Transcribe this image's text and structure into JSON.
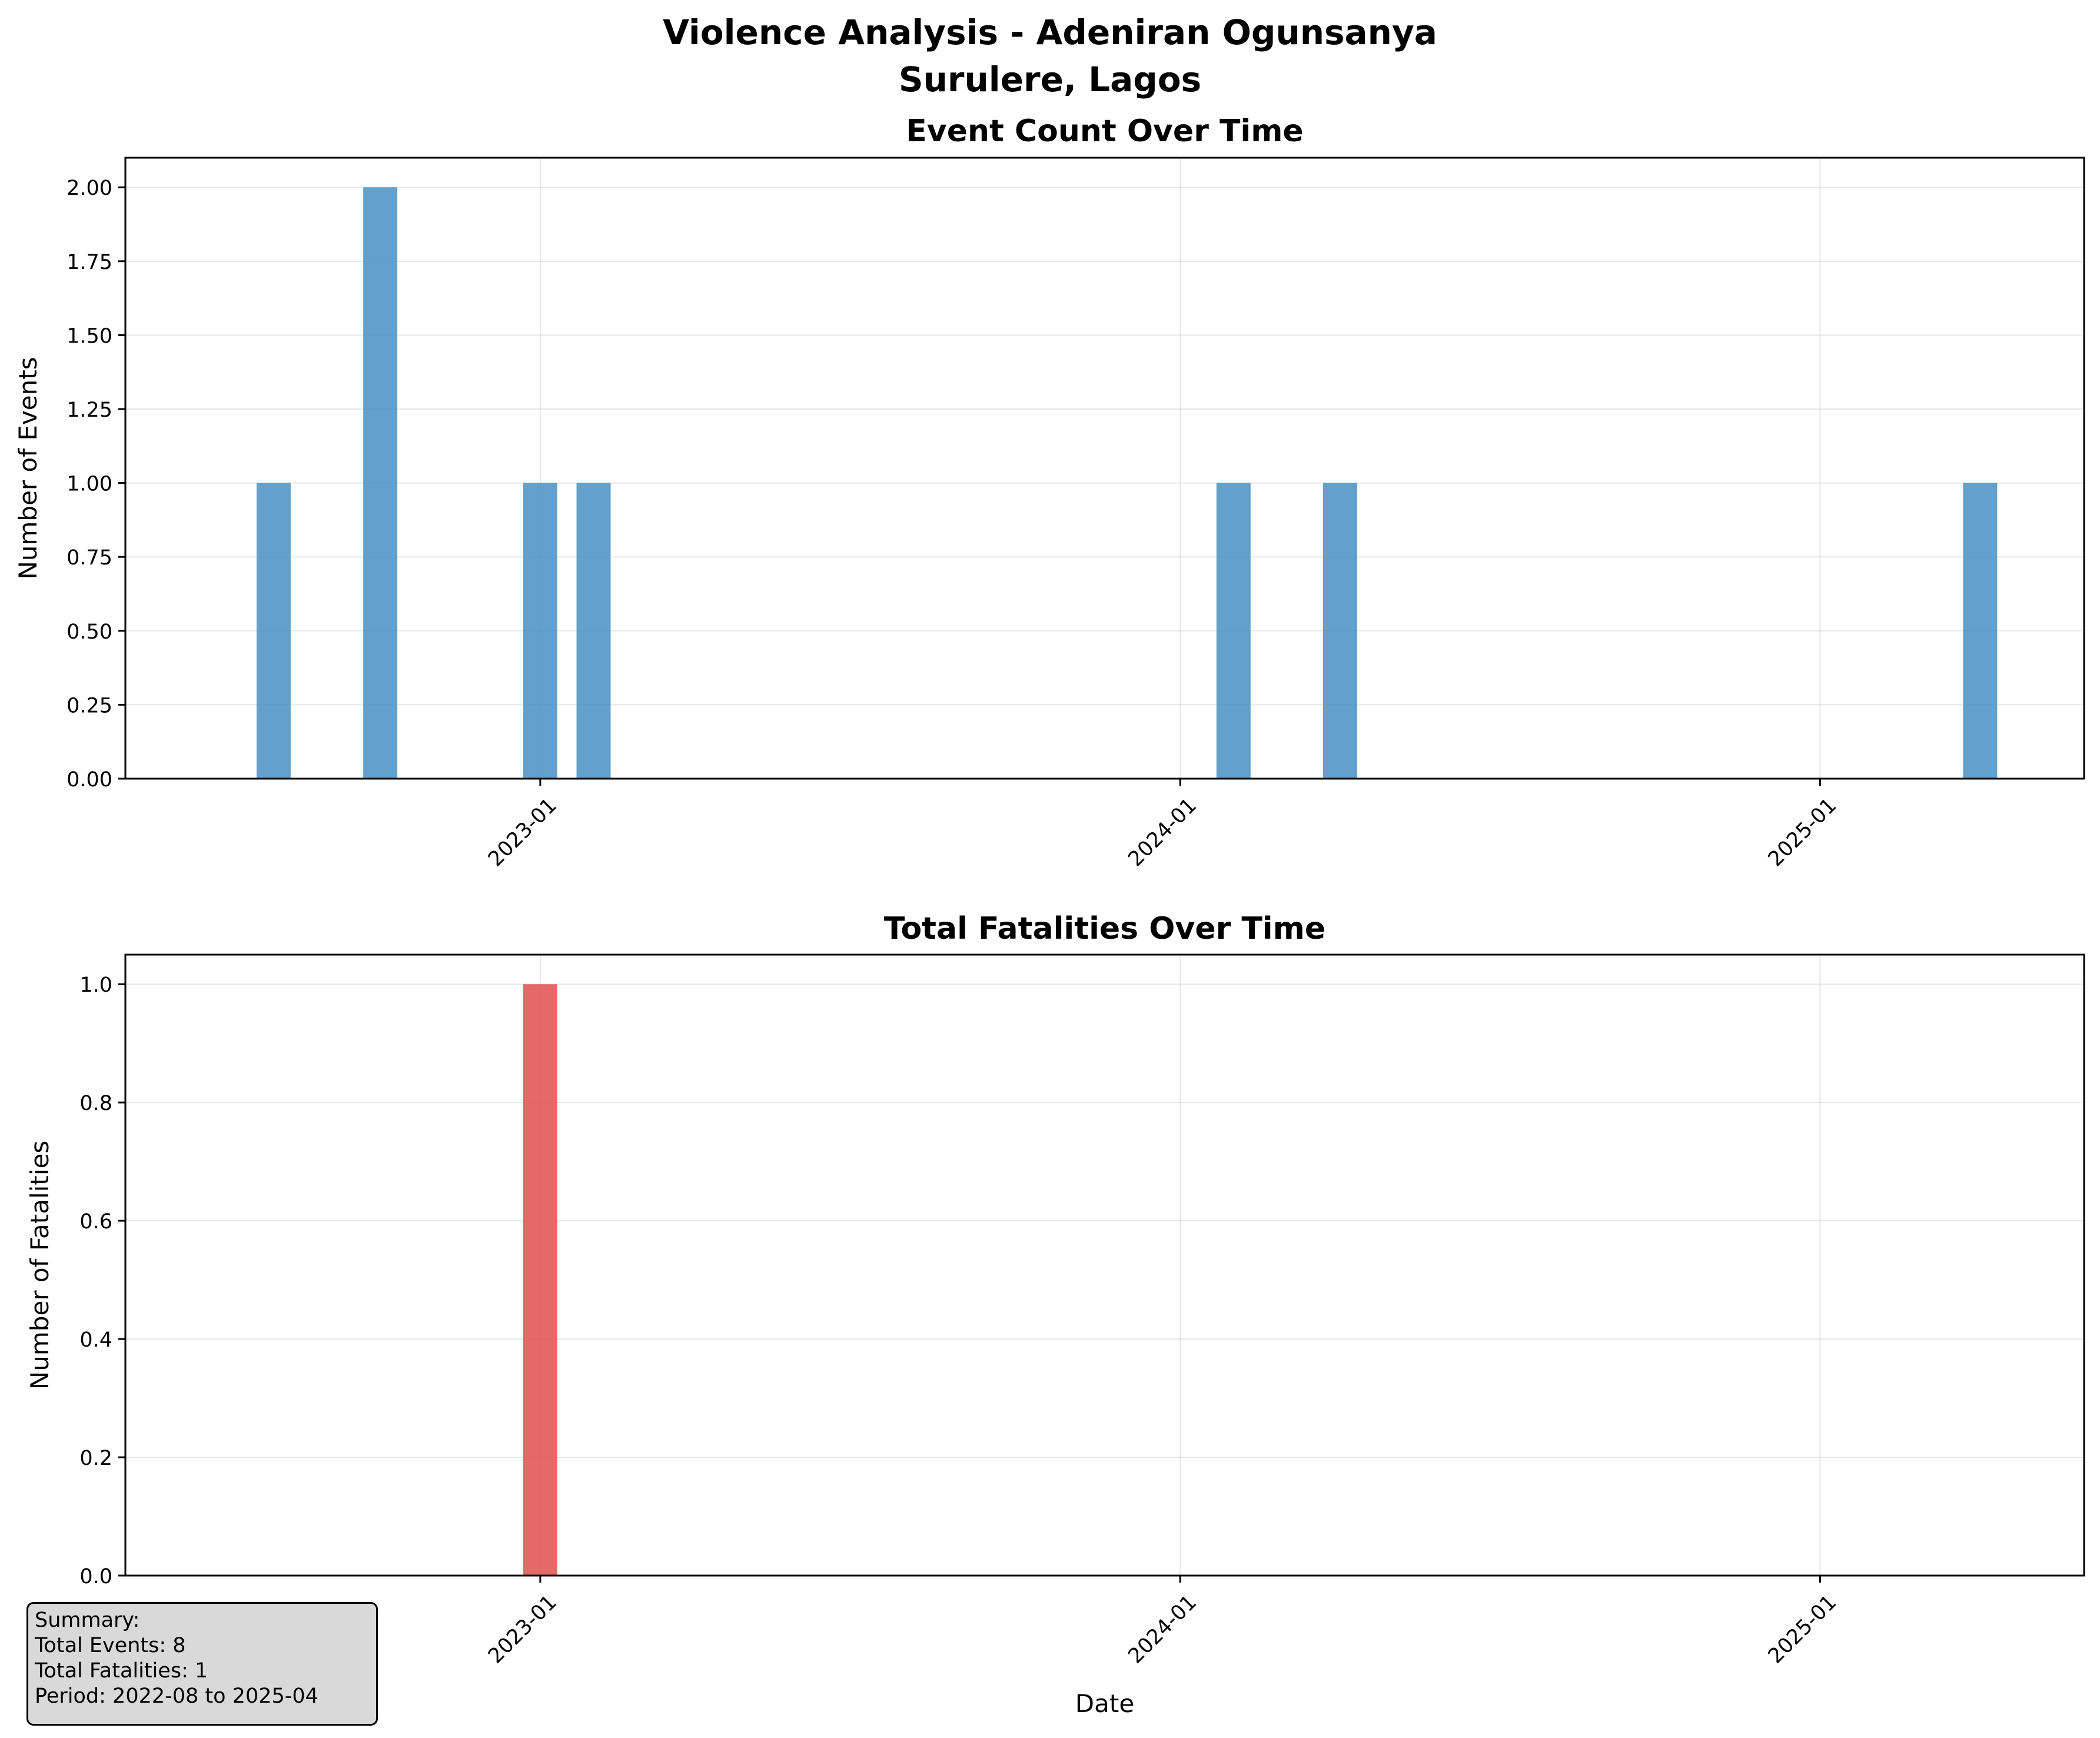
{
  "suptitle_line1": "Violence Analysis - Adeniran Ogunsanya",
  "suptitle_line2": "Surulere, Lagos",
  "summary": {
    "heading": "Summary:",
    "events": "Total Events: 8",
    "fatalities": "Total Fatalities: 1",
    "period": "Period: 2022-08 to 2025-04"
  },
  "colors": {
    "events_bar": "#4a90c4",
    "fatalities_bar": "#e05252"
  },
  "chart_data": [
    {
      "type": "bar",
      "title": "Event Count Over Time",
      "xlabel": "",
      "ylabel": "Number of Events",
      "x": [
        "2022-08",
        "2022-10",
        "2023-01",
        "2023-02",
        "2024-02",
        "2024-04",
        "2025-04"
      ],
      "values": [
        1,
        2,
        1,
        1,
        1,
        1,
        1
      ],
      "ylim": [
        0,
        2.1
      ],
      "yticks": [
        "0.00",
        "0.25",
        "0.50",
        "0.75",
        "1.00",
        "1.25",
        "1.50",
        "1.75",
        "2.00"
      ],
      "xticks": [
        "2023-01",
        "2024-01",
        "2025-01"
      ],
      "grid": true
    },
    {
      "type": "bar",
      "title": "Total Fatalities Over Time",
      "xlabel": "Date",
      "ylabel": "Number of Fatalities",
      "x": [
        "2023-01"
      ],
      "values": [
        1
      ],
      "ylim": [
        0,
        1.05
      ],
      "yticks": [
        "0.0",
        "0.2",
        "0.4",
        "0.6",
        "0.8",
        "1.0"
      ],
      "xticks": [
        "2023-01",
        "2024-01",
        "2025-01"
      ],
      "grid": true
    }
  ]
}
